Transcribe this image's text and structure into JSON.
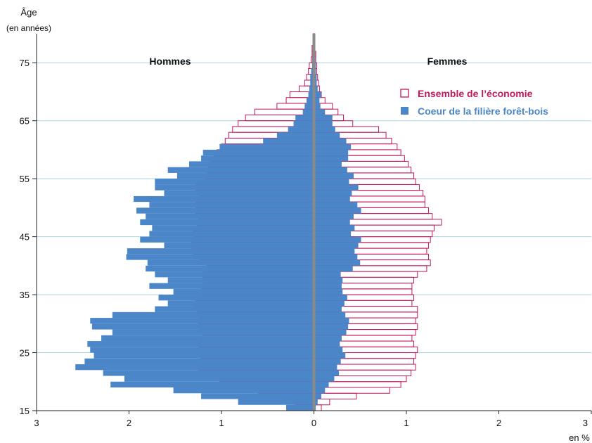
{
  "chart_data": {
    "type": "bar",
    "orientation": "horizontal-population-pyramid",
    "y_axis": {
      "label": "Âge",
      "sublabel": "(en années)",
      "ticks": [
        15,
        25,
        35,
        45,
        55,
        65,
        75
      ],
      "range": [
        15,
        80
      ]
    },
    "x_axis": {
      "unit_label": "en %",
      "ticks": [
        {
          "value": -3,
          "label": "3"
        },
        {
          "value": -2,
          "label": "2"
        },
        {
          "value": -1,
          "label": "1"
        },
        {
          "value": 0,
          "label": "0"
        },
        {
          "value": 1,
          "label": "1"
        },
        {
          "value": 2,
          "label": "2"
        },
        {
          "value": 3,
          "label": "3"
        }
      ],
      "range": [
        -3,
        3
      ]
    },
    "side_labels": {
      "left": "Hommes",
      "right": "Femmes"
    },
    "legend": {
      "position": "top-right",
      "items": [
        {
          "label": "Ensemble de l’économie",
          "style": "outline",
          "color": "#c2185b"
        },
        {
          "label": "Coeur de la filière forêt-bois",
          "style": "filled",
          "color": "#4a86c8"
        }
      ]
    },
    "grid": "horizontal",
    "ages": [
      15,
      16,
      17,
      18,
      19,
      20,
      21,
      22,
      23,
      24,
      25,
      26,
      27,
      28,
      29,
      30,
      31,
      32,
      33,
      34,
      35,
      36,
      37,
      38,
      39,
      40,
      41,
      42,
      43,
      44,
      45,
      46,
      47,
      48,
      49,
      50,
      51,
      52,
      53,
      54,
      55,
      56,
      57,
      58,
      59,
      60,
      61,
      62,
      63,
      64,
      65,
      66,
      67,
      68,
      69,
      70,
      71,
      72,
      73,
      74,
      75,
      76,
      77,
      78,
      79
    ],
    "series": [
      {
        "name": "Coeur de la filière forêt-bois",
        "side": "Hommes",
        "values": [
          0.3,
          0.82,
          1.22,
          1.52,
          2.2,
          2.05,
          2.28,
          2.58,
          2.48,
          2.38,
          2.42,
          2.45,
          2.3,
          2.18,
          2.4,
          2.42,
          2.18,
          1.72,
          1.58,
          1.68,
          1.52,
          1.78,
          1.58,
          1.72,
          1.82,
          1.8,
          2.03,
          2.02,
          1.62,
          1.88,
          1.78,
          1.75,
          1.88,
          1.82,
          1.92,
          1.78,
          1.95,
          1.62,
          1.72,
          1.72,
          1.48,
          1.58,
          1.35,
          1.22,
          1.2,
          1.02,
          0.55,
          0.4,
          0.28,
          0.22,
          0.2,
          0.12,
          0.1,
          0.08,
          0.06,
          0.05,
          0.04,
          0.04,
          0.03,
          0.02,
          0.02,
          0.01,
          0.01,
          0.01,
          0.01
        ]
      },
      {
        "name": "Coeur de la filière forêt-bois",
        "side": "Femmes",
        "values": [
          0.02,
          0.04,
          0.08,
          0.12,
          0.16,
          0.22,
          0.27,
          0.25,
          0.29,
          0.34,
          0.31,
          0.28,
          0.3,
          0.35,
          0.37,
          0.38,
          0.34,
          0.3,
          0.33,
          0.36,
          0.31,
          0.3,
          0.31,
          0.29,
          0.42,
          0.5,
          0.47,
          0.44,
          0.48,
          0.51,
          0.4,
          0.44,
          0.39,
          0.43,
          0.51,
          0.47,
          0.39,
          0.41,
          0.48,
          0.38,
          0.43,
          0.36,
          0.3,
          0.37,
          0.37,
          0.4,
          0.35,
          0.28,
          0.23,
          0.2,
          0.2,
          0.12,
          0.07,
          0.06,
          0.08,
          0.04,
          0.03,
          0.03,
          0.02,
          0.02,
          0.02,
          0.01,
          0.01,
          0.01,
          0.01
        ]
      },
      {
        "name": "Ensemble de l’économie",
        "side": "Hommes",
        "values": [
          0.05,
          0.2,
          0.45,
          0.6,
          0.88,
          1.02,
          1.12,
          1.25,
          1.22,
          1.22,
          1.25,
          1.24,
          1.2,
          1.2,
          1.22,
          1.25,
          1.24,
          1.26,
          1.28,
          1.25,
          1.22,
          1.2,
          1.16,
          1.2,
          1.16,
          1.16,
          1.23,
          1.3,
          1.32,
          1.3,
          1.3,
          1.26,
          1.25,
          1.23,
          1.28,
          1.28,
          1.22,
          1.24,
          1.28,
          1.18,
          1.16,
          1.14,
          1.12,
          1.08,
          1.05,
          1.0,
          0.96,
          0.92,
          0.88,
          0.82,
          0.74,
          0.64,
          0.4,
          0.3,
          0.26,
          0.16,
          0.1,
          0.08,
          0.06,
          0.05,
          0.03,
          0.02,
          0.02,
          0.01,
          0.01
        ]
      },
      {
        "name": "Ensemble de l’économie",
        "side": "Femmes",
        "values": [
          0.08,
          0.17,
          0.46,
          0.82,
          0.94,
          1.0,
          1.05,
          1.1,
          1.08,
          1.1,
          1.12,
          1.08,
          1.06,
          1.1,
          1.12,
          1.1,
          1.12,
          1.12,
          1.06,
          1.08,
          1.06,
          1.06,
          1.08,
          1.12,
          1.22,
          1.26,
          1.24,
          1.22,
          1.24,
          1.26,
          1.28,
          1.3,
          1.38,
          1.28,
          1.24,
          1.2,
          1.2,
          1.18,
          1.14,
          1.1,
          1.08,
          1.05,
          1.02,
          0.98,
          0.94,
          0.9,
          0.84,
          0.78,
          0.7,
          0.42,
          0.32,
          0.26,
          0.2,
          0.12,
          0.08,
          0.06,
          0.05,
          0.04,
          0.03,
          0.03,
          0.02,
          0.02,
          0.01,
          0.01,
          0.01
        ]
      }
    ]
  }
}
